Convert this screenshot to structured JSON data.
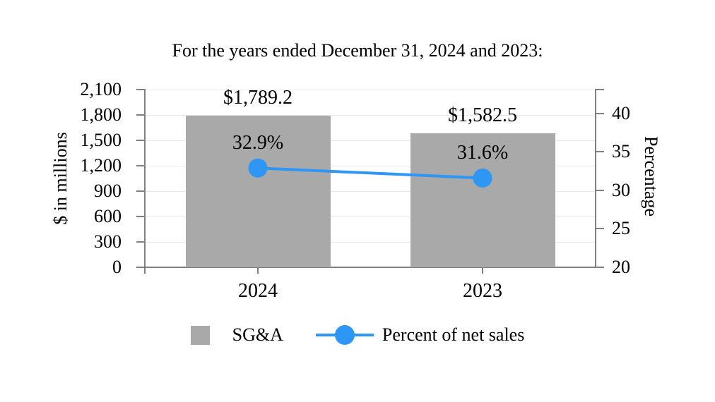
{
  "title": "For the years ended December 31, 2024 and 2023:",
  "chart_data": {
    "type": "bar+line combo",
    "categories": [
      "2024",
      "2023"
    ],
    "series": [
      {
        "name": "SG&A",
        "type": "bar",
        "axis": "left",
        "values": [
          1789.2,
          1582.5
        ],
        "data_labels": [
          "$1,789.2",
          "$1,582.5"
        ],
        "color": "#a9a9a9"
      },
      {
        "name": "Percent of net sales",
        "type": "line",
        "axis": "right",
        "values": [
          32.9,
          31.6
        ],
        "data_labels": [
          "32.9%",
          "31.6%"
        ],
        "color": "#2e96f5"
      }
    ],
    "left_axis": {
      "title": "$ in millions",
      "min": 0,
      "max": 2100,
      "tick_values": [
        0,
        300,
        600,
        900,
        1200,
        1500,
        1800,
        2100
      ],
      "tick_labels": [
        "0",
        "300",
        "600",
        "900",
        "1,200",
        "1,500",
        "1,800",
        "2,100"
      ]
    },
    "right_axis": {
      "title": "Percentage",
      "min": 20,
      "max": 43.1,
      "tick_values": [
        20,
        25,
        30,
        35,
        40
      ],
      "tick_labels": [
        "20",
        "25",
        "30",
        "35",
        "40"
      ]
    },
    "grid": true,
    "legend_position": "bottom",
    "styles": {
      "grid_color": "#e8e8e8",
      "axis_color": "#808080",
      "text_color": "#000000",
      "background": "#ffffff"
    }
  },
  "legend": {
    "items": [
      {
        "label": "SG&A",
        "swatch": "square"
      },
      {
        "label": "Percent of net sales",
        "swatch": "line-marker"
      }
    ]
  }
}
